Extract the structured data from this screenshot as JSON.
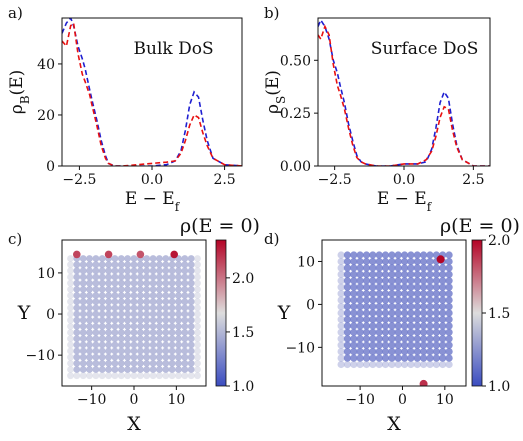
{
  "chart_data": [
    {
      "panel": "a)",
      "type": "line",
      "title": "Bulk DoS",
      "xlabel": "E − E",
      "xlabel_sub": "f",
      "ylabel": "ρ",
      "ylabel_sub": "B",
      "ylabel_suffix": "(E)",
      "xlim": [
        -3.1,
        3.1
      ],
      "ylim": [
        0,
        58
      ],
      "xticks": [
        -2.5,
        0.0,
        2.5
      ],
      "xtick_labels": [
        "−2.5",
        "0.0",
        "2.5"
      ],
      "yticks": [
        0,
        20,
        40
      ],
      "ytick_labels": [
        "0",
        "20",
        "40"
      ],
      "series": [
        {
          "color": "#1f1fd1",
          "dash": "dashed",
          "x": [
            -3.1,
            -2.95,
            -2.8,
            -2.7,
            -2.55,
            -2.4,
            -2.3,
            -2.15,
            -2.05,
            -1.9,
            -1.75,
            -1.6,
            -1.5,
            -1.3,
            -1.0,
            -0.5,
            0,
            0.5,
            0.8,
            1.0,
            1.15,
            1.3,
            1.45,
            1.6,
            1.75,
            1.9,
            2.1,
            2.5,
            3.1
          ],
          "y": [
            52,
            56,
            58,
            55,
            47,
            42,
            38,
            30,
            25,
            18,
            10,
            4,
            1,
            0,
            0,
            0,
            0,
            0.5,
            2,
            6,
            14,
            24,
            29,
            27,
            18,
            10,
            3,
            0.5,
            0
          ]
        },
        {
          "color": "#e81010",
          "dash": "dashed",
          "x": [
            -3.1,
            -2.95,
            -2.8,
            -2.7,
            -2.55,
            -2.4,
            -2.3,
            -2.15,
            -2.05,
            -1.9,
            -1.75,
            -1.6,
            -1.5,
            -1.3,
            -1.0,
            -0.5,
            0,
            0.5,
            0.8,
            1.0,
            1.15,
            1.3,
            1.45,
            1.6,
            1.75,
            1.9,
            2.1,
            2.5,
            3.1
          ],
          "y": [
            49,
            47,
            55,
            56,
            44,
            36,
            33,
            28,
            23,
            16,
            8,
            3,
            1,
            0,
            0,
            0.5,
            1,
            1.5,
            2,
            5,
            10,
            16,
            20,
            19,
            13,
            8,
            3,
            0.5,
            0
          ]
        }
      ]
    },
    {
      "panel": "b)",
      "type": "line",
      "title": "Surface DoS",
      "xlabel": "E − E",
      "xlabel_sub": "f",
      "ylabel": "ρ",
      "ylabel_sub": "S",
      "ylabel_suffix": "(E)",
      "xlim": [
        -3.1,
        3.1
      ],
      "ylim": [
        0,
        0.7
      ],
      "xticks": [
        -2.5,
        0.0,
        2.5
      ],
      "xtick_labels": [
        "−2.5",
        "0.0",
        "2.5"
      ],
      "yticks": [
        0.0,
        0.25,
        0.5
      ],
      "ytick_labels": [
        "0.00",
        "0.25",
        "0.50"
      ],
      "series": [
        {
          "color": "#1f1fd1",
          "dash": "dashed",
          "x": [
            -3.1,
            -3.0,
            -2.85,
            -2.7,
            -2.55,
            -2.4,
            -2.3,
            -2.15,
            -2.0,
            -1.85,
            -1.7,
            -1.55,
            -1.4,
            -1.0,
            -0.5,
            0,
            0.5,
            0.8,
            1.0,
            1.15,
            1.3,
            1.45,
            1.6,
            1.75,
            1.9,
            2.1,
            2.5,
            3.1
          ],
          "y": [
            0.66,
            0.69,
            0.66,
            0.6,
            0.5,
            0.44,
            0.38,
            0.3,
            0.2,
            0.12,
            0.05,
            0.02,
            0.01,
            0,
            0,
            0.01,
            0.01,
            0.02,
            0.08,
            0.18,
            0.3,
            0.35,
            0.32,
            0.2,
            0.1,
            0.03,
            0,
            0
          ]
        },
        {
          "color": "#e81010",
          "dash": "dashed",
          "x": [
            -3.1,
            -3.0,
            -2.85,
            -2.7,
            -2.55,
            -2.4,
            -2.3,
            -2.15,
            -2.0,
            -1.85,
            -1.7,
            -1.55,
            -1.4,
            -1.0,
            -0.5,
            0,
            0.5,
            0.8,
            1.0,
            1.15,
            1.3,
            1.45,
            1.6,
            1.75,
            1.9,
            2.1,
            2.5,
            3.1
          ],
          "y": [
            0.62,
            0.6,
            0.66,
            0.62,
            0.48,
            0.38,
            0.34,
            0.27,
            0.18,
            0.1,
            0.04,
            0.02,
            0.01,
            0,
            0,
            0.01,
            0.01,
            0.03,
            0.07,
            0.14,
            0.23,
            0.28,
            0.27,
            0.17,
            0.09,
            0.03,
            0,
            0
          ]
        }
      ]
    },
    {
      "panel": "c)",
      "type": "scatter",
      "title": "ρ(E = 0)",
      "xlabel": "X",
      "ylabel": "Y",
      "xlim": [
        -17,
        17
      ],
      "ylim": [
        -17.5,
        18
      ],
      "xticks": [
        -10,
        0,
        10
      ],
      "xtick_labels": [
        "−10",
        "0",
        "10"
      ],
      "yticks": [
        -10,
        0,
        10
      ],
      "ytick_labels": [
        "−10",
        "0",
        "10"
      ],
      "grid": {
        "x_min": -15,
        "x_max": 15,
        "x_step": 1.5,
        "y_min": -15,
        "y_max": 14.5,
        "y_step": 1.5,
        "base_value": 1.45
      },
      "highlights": [
        {
          "x": -13.5,
          "y": 14.5,
          "value": 2.15
        },
        {
          "x": -6.0,
          "y": 14.5,
          "value": 2.15
        },
        {
          "x": 1.5,
          "y": 14.5,
          "value": 2.1
        },
        {
          "x": 9.5,
          "y": 14.5,
          "value": 2.3
        }
      ],
      "colorbar": {
        "vmin": 1.0,
        "vmax": 2.35,
        "ticks": [
          1.0,
          1.5,
          2.0
        ],
        "tick_labels": [
          "1.0",
          "1.5",
          "2.0"
        ]
      }
    },
    {
      "panel": "d)",
      "type": "scatter",
      "title": "ρ(E = 0)",
      "xlabel": "X",
      "ylabel": "Y",
      "xlim": [
        -19,
        15
      ],
      "ylim": [
        -19,
        15
      ],
      "xticks": [
        -10,
        0,
        10
      ],
      "xtick_labels": [
        "−10",
        "0",
        "10"
      ],
      "yticks": [
        -10,
        0,
        10
      ],
      "ytick_labels": [
        "−10",
        "0",
        "10"
      ],
      "grid": {
        "x_min": -14.5,
        "x_max": 11.5,
        "x_step": 1.5,
        "y_min": -14,
        "y_max": 12.5,
        "y_step": 1.5,
        "base_value": 1.15
      },
      "highlights": [
        {
          "x": 9.0,
          "y": 10.5,
          "value": 2.0
        },
        {
          "x": 5.0,
          "y": -18.5,
          "value": 1.9
        }
      ],
      "colorbar": {
        "vmin": 1.0,
        "vmax": 2.0,
        "ticks": [
          1.0,
          1.5,
          2.0
        ],
        "tick_labels": [
          "1.0",
          "1.5",
          "2.0"
        ]
      }
    }
  ]
}
